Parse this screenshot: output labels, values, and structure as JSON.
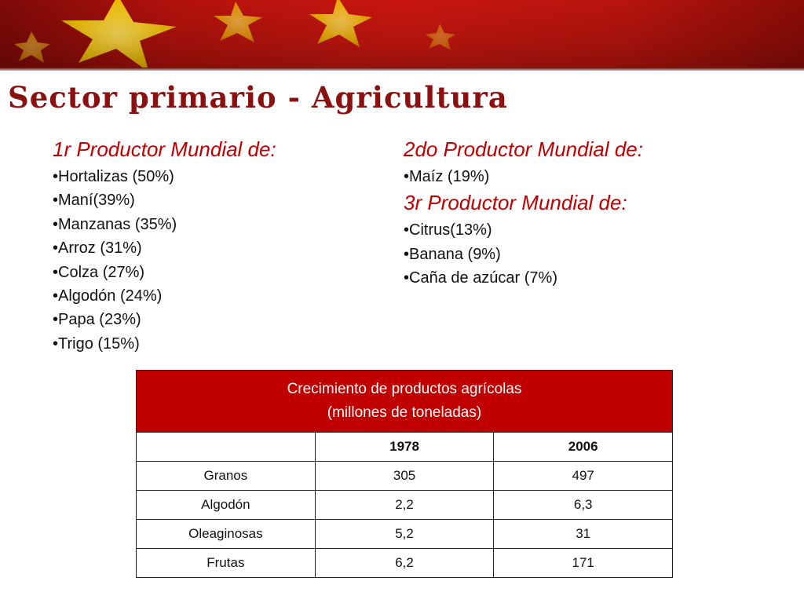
{
  "slide": {
    "title": "Sector primario - Agricultura",
    "colors": {
      "title": "#8b1010",
      "heading": "#c00000",
      "table_header_bg": "#c00000",
      "banner_red": "#c9170f",
      "star_yellow": "#f2c400"
    },
    "banner_icon": "china-flag-stars"
  },
  "left": {
    "heading": "1r Productor Mundial de:",
    "items": [
      "Hortalizas (50%)",
      "Maní(39%)",
      "Manzanas (35%)",
      "Arroz (31%)",
      "Colza (27%)",
      "Algodón (24%)",
      "Papa (23%)",
      "Trigo (15%)"
    ]
  },
  "right": {
    "heading_second": "2do Productor Mundial de:",
    "items_second": [
      "Maíz (19%)"
    ],
    "heading_third": "3r Productor Mundial de:",
    "items_third": [
      "Citrus(13%)",
      "Banana (9%)",
      "Caña de azúcar (7%)"
    ]
  },
  "table": {
    "caption_line1": "Crecimiento de productos agrícolas",
    "caption_line2": "(millones de toneladas)",
    "columns": [
      "",
      "1978",
      "2006"
    ],
    "rows": [
      [
        "Granos",
        "305",
        "497"
      ],
      [
        "Algodón",
        "2,2",
        "6,3"
      ],
      [
        "Oleaginosas",
        "5,2",
        "31"
      ],
      [
        "Frutas",
        "6,2",
        "171"
      ]
    ]
  }
}
